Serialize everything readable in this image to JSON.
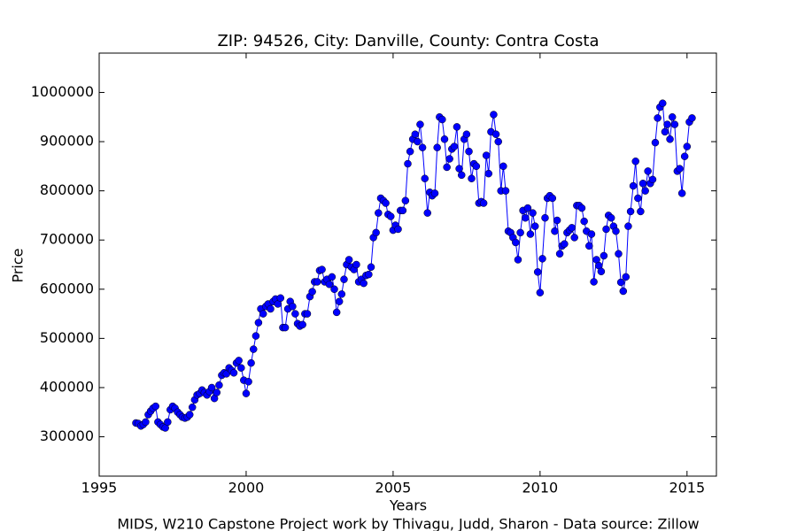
{
  "chart_data": {
    "type": "line",
    "title": "ZIP: 94526, City: Danville, County: Contra Costa",
    "x_label": "Years",
    "y_label": "Price",
    "caption": "MIDS, W210 Capstone Project work by Thivagu, Judd, Sharon  -  Data source: Zillow",
    "xlim": [
      1995,
      2016
    ],
    "xticks": [
      1995,
      2000,
      2005,
      2010,
      2015
    ],
    "ylim": [
      220000,
      1080000
    ],
    "yticks": [
      300000,
      400000,
      500000,
      600000,
      700000,
      800000,
      900000,
      1000000
    ],
    "grid": false,
    "x": [
      1996.25,
      1996.33,
      1996.42,
      1996.5,
      1996.58,
      1996.67,
      1996.75,
      1996.83,
      1996.92,
      1997,
      1997.08,
      1997.17,
      1997.25,
      1997.33,
      1997.42,
      1997.5,
      1997.58,
      1997.67,
      1997.75,
      1997.83,
      1997.92,
      1998,
      1998.08,
      1998.17,
      1998.25,
      1998.33,
      1998.42,
      1998.5,
      1998.58,
      1998.67,
      1998.75,
      1998.83,
      1998.92,
      1999,
      1999.08,
      1999.17,
      1999.25,
      1999.33,
      1999.42,
      1999.5,
      1999.58,
      1999.67,
      1999.75,
      1999.83,
      1999.92,
      2000,
      2000.08,
      2000.17,
      2000.25,
      2000.33,
      2000.42,
      2000.5,
      2000.58,
      2000.67,
      2000.75,
      2000.83,
      2000.92,
      2001,
      2001.08,
      2001.17,
      2001.25,
      2001.33,
      2001.42,
      2001.5,
      2001.58,
      2001.67,
      2001.75,
      2001.83,
      2001.92,
      2002,
      2002.08,
      2002.17,
      2002.25,
      2002.33,
      2002.42,
      2002.5,
      2002.58,
      2002.67,
      2002.75,
      2002.83,
      2002.92,
      2003,
      2003.08,
      2003.17,
      2003.25,
      2003.33,
      2003.42,
      2003.5,
      2003.58,
      2003.67,
      2003.75,
      2003.83,
      2003.92,
      2004,
      2004.08,
      2004.17,
      2004.25,
      2004.33,
      2004.42,
      2004.5,
      2004.58,
      2004.67,
      2004.75,
      2004.83,
      2004.92,
      2005,
      2005.08,
      2005.17,
      2005.25,
      2005.33,
      2005.42,
      2005.5,
      2005.58,
      2005.67,
      2005.75,
      2005.83,
      2005.92,
      2006,
      2006.08,
      2006.17,
      2006.25,
      2006.33,
      2006.42,
      2006.5,
      2006.58,
      2006.67,
      2006.75,
      2006.83,
      2006.92,
      2007,
      2007.08,
      2007.17,
      2007.25,
      2007.33,
      2007.42,
      2007.5,
      2007.58,
      2007.67,
      2007.75,
      2007.83,
      2007.92,
      2008,
      2008.08,
      2008.17,
      2008.25,
      2008.33,
      2008.42,
      2008.5,
      2008.58,
      2008.67,
      2008.75,
      2008.83,
      2008.92,
      2009,
      2009.08,
      2009.17,
      2009.25,
      2009.33,
      2009.42,
      2009.5,
      2009.58,
      2009.67,
      2009.75,
      2009.83,
      2009.92,
      2010,
      2010.08,
      2010.17,
      2010.25,
      2010.33,
      2010.42,
      2010.5,
      2010.58,
      2010.67,
      2010.75,
      2010.83,
      2010.92,
      2011,
      2011.08,
      2011.17,
      2011.25,
      2011.33,
      2011.42,
      2011.5,
      2011.58,
      2011.67,
      2011.75,
      2011.83,
      2011.92,
      2012,
      2012.08,
      2012.17,
      2012.25,
      2012.33,
      2012.42,
      2012.5,
      2012.58,
      2012.67,
      2012.75,
      2012.83,
      2012.92,
      2013,
      2013.08,
      2013.17,
      2013.25,
      2013.33,
      2013.42,
      2013.5,
      2013.58,
      2013.67,
      2013.75,
      2013.83,
      2013.92,
      2014,
      2014.08,
      2014.17,
      2014.25,
      2014.33,
      2014.42,
      2014.5,
      2014.58,
      2014.67,
      2014.75,
      2014.83,
      2014.92,
      2015,
      2015.08,
      2015.17
    ],
    "series": [
      {
        "name": "Price",
        "color": "#0000ff",
        "values": [
          328000,
          327000,
          322000,
          325000,
          330000,
          345000,
          352000,
          358000,
          362000,
          330000,
          325000,
          320000,
          318000,
          330000,
          355000,
          362000,
          358000,
          350000,
          345000,
          340000,
          338000,
          340000,
          345000,
          360000,
          375000,
          385000,
          388000,
          395000,
          390000,
          385000,
          392000,
          400000,
          378000,
          390000,
          405000,
          425000,
          430000,
          428000,
          440000,
          435000,
          430000,
          450000,
          455000,
          440000,
          415000,
          388000,
          412000,
          450000,
          478000,
          505000,
          532000,
          560000,
          550000,
          565000,
          570000,
          560000,
          575000,
          580000,
          570000,
          582000,
          522000,
          522000,
          560000,
          575000,
          565000,
          550000,
          530000,
          525000,
          528000,
          550000,
          550000,
          585000,
          595000,
          615000,
          615000,
          638000,
          640000,
          615000,
          620000,
          610000,
          625000,
          600000,
          553000,
          575000,
          590000,
          620000,
          650000,
          660000,
          645000,
          640000,
          650000,
          615000,
          620000,
          612000,
          628000,
          630000,
          645000,
          705000,
          715000,
          755000,
          785000,
          780000,
          775000,
          752000,
          748000,
          720000,
          730000,
          722000,
          760000,
          760000,
          780000,
          855000,
          880000,
          905000,
          915000,
          900000,
          935000,
          888000,
          825000,
          755000,
          797000,
          790000,
          795000,
          888000,
          950000,
          945000,
          905000,
          848000,
          865000,
          885000,
          890000,
          930000,
          845000,
          832000,
          905000,
          915000,
          880000,
          825000,
          855000,
          850000,
          775000,
          778000,
          775000,
          872000,
          835000,
          920000,
          955000,
          915000,
          900000,
          800000,
          850000,
          800000,
          718000,
          715000,
          705000,
          695000,
          660000,
          715000,
          760000,
          745000,
          765000,
          712000,
          755000,
          728000,
          635000,
          593000,
          662000,
          745000,
          785000,
          790000,
          785000,
          718000,
          740000,
          672000,
          688000,
          692000,
          715000,
          720000,
          725000,
          705000,
          770000,
          770000,
          765000,
          738000,
          718000,
          688000,
          712000,
          615000,
          660000,
          648000,
          636000,
          668000,
          722000,
          750000,
          745000,
          728000,
          718000,
          672000,
          614000,
          596000,
          625000,
          728000,
          758000,
          810000,
          860000,
          785000,
          758000,
          815000,
          800000,
          840000,
          815000,
          823000,
          898000,
          948000,
          970000,
          978000,
          920000,
          935000,
          905000,
          950000,
          935000,
          840000,
          845000,
          795000,
          870000,
          890000,
          940000,
          948000
        ]
      }
    ]
  }
}
